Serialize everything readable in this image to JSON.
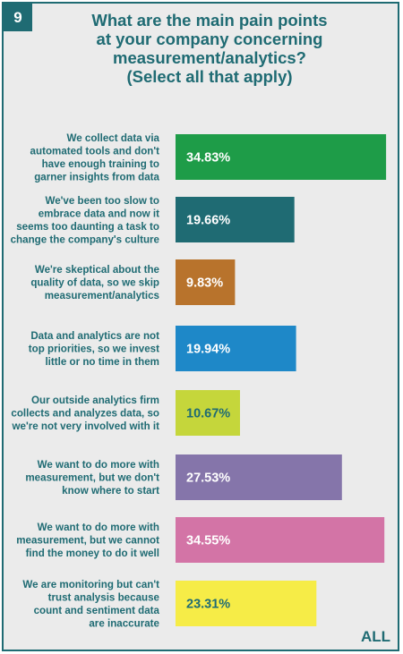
{
  "badge": "9",
  "title_lines": [
    "What are the main pain points",
    "at your company concerning",
    "measurement/analytics?",
    "(Select all that apply)"
  ],
  "footer": "ALL",
  "chart_data": {
    "type": "bar",
    "orientation": "horizontal",
    "categories": [
      [
        "We collect data via",
        "automated tools and don't",
        "have enough training to",
        "garner insights from data"
      ],
      [
        "We've been too slow to",
        "embrace data and now it",
        "seems too daunting a task to",
        "change the company's culture"
      ],
      [
        "We're skeptical about the",
        "quality of data, so we skip",
        "measurement/analytics"
      ],
      [
        "Data and analytics are not",
        "top priorities, so we invest",
        "little or no time in them"
      ],
      [
        "Our outside analytics firm",
        "collects and analyzes data, so",
        "we're not very involved with it"
      ],
      [
        "We want to do more with",
        "measurement, but we don't",
        "know where to start"
      ],
      [
        "We want to do more with",
        "measurement, but we cannot",
        "find the money to do it well"
      ],
      [
        "We are monitoring but can't",
        "trust analysis because",
        "count and sentiment data",
        "are inaccurate"
      ]
    ],
    "values": [
      34.83,
      19.66,
      9.83,
      19.94,
      10.67,
      27.53,
      34.55,
      23.31
    ],
    "labels": [
      "34.83%",
      "19.66%",
      "9.83%",
      "19.94%",
      "10.67%",
      "27.53%",
      "34.55%",
      "23.31%"
    ],
    "colors": [
      "#1e9c48",
      "#1f6b73",
      "#b8732c",
      "#1e88c8",
      "#c5d63b",
      "#8575aa",
      "#d374a6",
      "#f6ec47"
    ],
    "label_colors": [
      "#ffffff",
      "#ffffff",
      "#ffffff",
      "#ffffff",
      "#1f6b73",
      "#ffffff",
      "#ffffff",
      "#1f6b73"
    ],
    "xlim": [
      0,
      36
    ]
  }
}
